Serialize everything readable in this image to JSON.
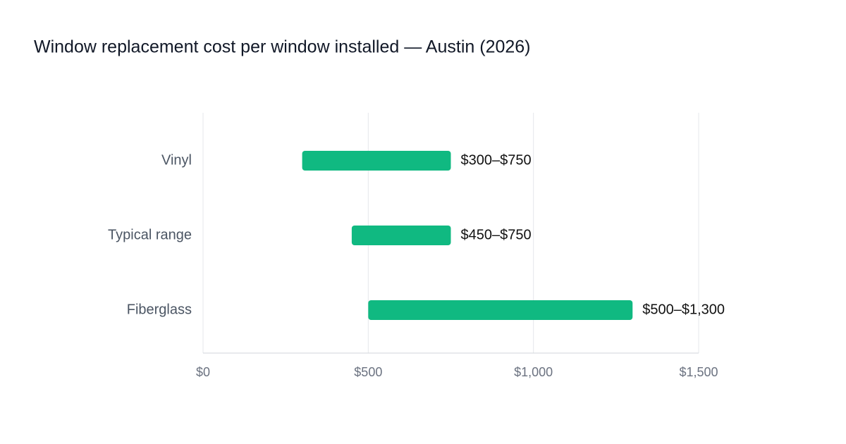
{
  "chart_data": {
    "type": "range-bar",
    "title": "Window replacement cost per window installed — Austin (2026)",
    "categories": [
      "Vinyl",
      "Typical range",
      "Fiberglass"
    ],
    "values": [
      [
        300,
        750
      ],
      [
        450,
        750
      ],
      [
        500,
        1300
      ]
    ],
    "value_labels": [
      "$300–$750",
      "$450–$750",
      "$500–$1,300"
    ],
    "color": "#10b981",
    "xlim": [
      0,
      1500
    ],
    "xticks": [
      {
        "value": 0,
        "label": "$0"
      },
      {
        "value": 500,
        "label": "$500"
      },
      {
        "value": 1000,
        "label": "$1,000"
      },
      {
        "value": 1500,
        "label": "$1,500"
      }
    ],
    "grid": true
  }
}
